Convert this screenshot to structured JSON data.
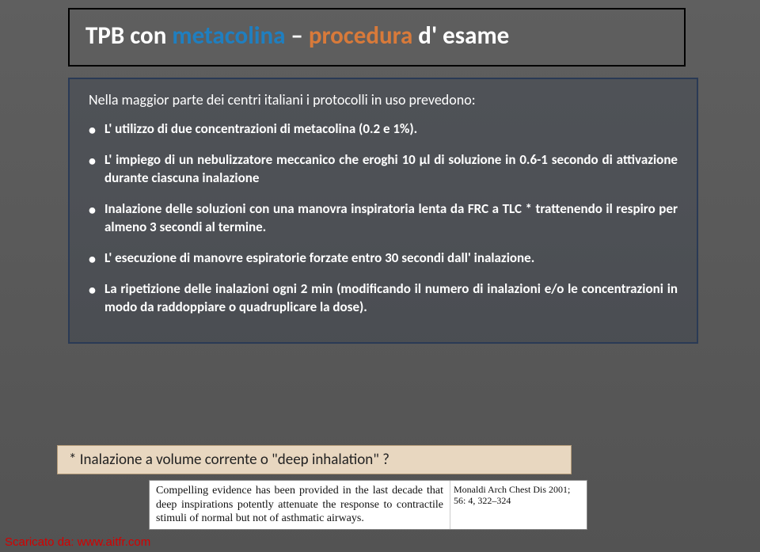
{
  "title": {
    "part1": "TPB con ",
    "part2_accent": "metacolina",
    "part3": " – ",
    "part4_accent": "procedura",
    "part5": " d' esame"
  },
  "content": {
    "intro": "Nella maggior parte dei centri italiani i protocolli in uso prevedono:",
    "bullets": [
      "L' utilizzo di due concentrazioni di metacolina (0.2 e 1%).",
      "L' impiego di un nebulizzatore meccanico che eroghi 10 µl di soluzione in 0.6-1 secondo di attivazione durante ciascuna inalazione",
      "Inalazione delle soluzioni con una manovra inspiratoria lenta da FRC a TLC * trattenendo il respiro per almeno 3 secondi al termine.",
      "L' esecuzione di manovre espiratorie forzate entro 30 secondi dall' inalazione.",
      "La ripetizione delle inalazioni ogni 2 min (modificando il numero di inalazioni e/o le concentrazioni in modo da raddoppiare o quadruplicare la dose)."
    ]
  },
  "note": "* Inalazione a volume corrente o \"deep inhalation\" ?",
  "clip": {
    "text": "Compelling evidence has been provided in the last decade that deep inspirations potently attenuate the response to contractile stimuli of normal but not of asthmatic airways.",
    "cite": "Monaldi Arch Chest Dis 2001; 56: 4, 322–324"
  },
  "footer": "Scaricato da: www.aitfr.com",
  "colors": {
    "bg_top": "#5f5f5f",
    "bg_bottom": "#535353",
    "accent_blue": "#1f7fc0",
    "accent_orange": "#d87a3a",
    "note_bg": "#e8d7c0",
    "footer_color": "#d40000"
  }
}
